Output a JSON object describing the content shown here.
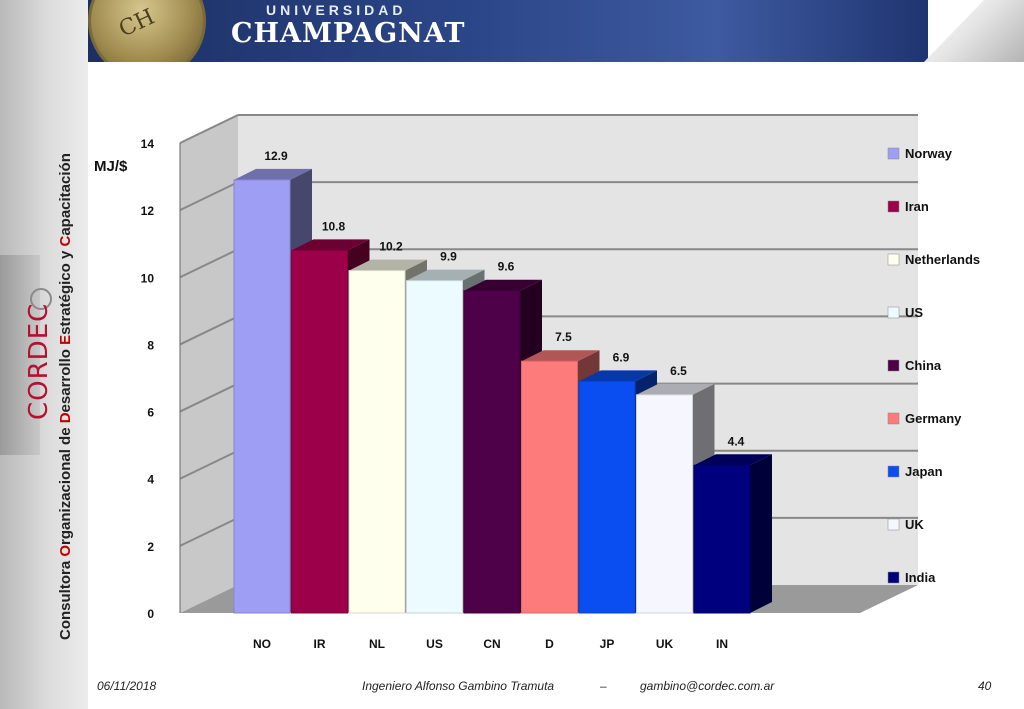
{
  "header": {
    "university_label": "UNIVERSIDAD",
    "university_name": "CHAMPAGNAT",
    "seal_text": "CH"
  },
  "sidebar": {
    "logo_text": "CORDEC",
    "tagline_parts": [
      "Consultora ",
      "O",
      "rganizacional de ",
      "D",
      "esarrollo ",
      "E",
      "stratégico y ",
      "C",
      "apacitación"
    ]
  },
  "footer": {
    "date": "06/11/2018",
    "author": "Ingeniero Alfonso Gambino Tramuta",
    "separator": "–",
    "email": "gambino@cordec.com.ar",
    "page": "40"
  },
  "colors": {
    "accent": "#c00000",
    "banner": "#2b4688"
  },
  "chart_data": {
    "type": "bar",
    "ylabel": "MJ/$",
    "ylim": [
      0,
      14
    ],
    "yticks": [
      "0",
      "2",
      "4",
      "6",
      "8",
      "10",
      "12",
      "14"
    ],
    "categories": [
      "NO",
      "IR",
      "NL",
      "US",
      "CN",
      "D",
      "JP",
      "UK",
      "IN"
    ],
    "values": [
      12.9,
      10.8,
      10.2,
      9.9,
      9.6,
      7.5,
      6.9,
      6.5,
      4.4
    ],
    "value_labels": [
      "12.9",
      "10.8",
      "10.2",
      "9.9",
      "9.6",
      "7.5",
      "6.9",
      "6.5",
      "4.4"
    ],
    "legend": [
      "Norway",
      "Iran",
      "Netherlands",
      "US",
      "China",
      "Germany",
      "Japan",
      "UK",
      "India"
    ],
    "colors": [
      "#9e9ef5",
      "#9b0048",
      "#ffffee",
      "#ebfbff",
      "#4e0048",
      "#fd7b7b",
      "#0a4ef2",
      "#f6f6ff",
      "#00007e"
    ],
    "legend_position": "right",
    "grid": true
  }
}
